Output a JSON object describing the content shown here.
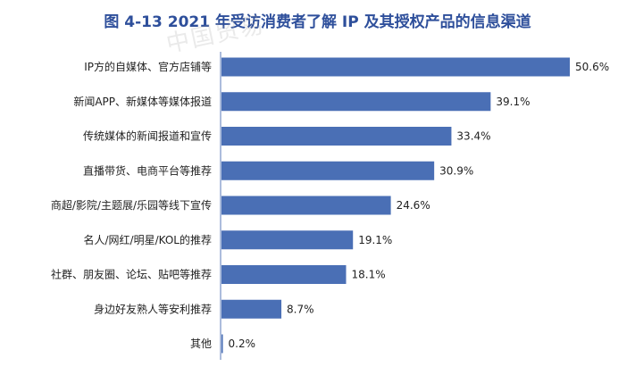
{
  "chart_data": {
    "type": "bar",
    "orientation": "horizontal",
    "title": "图 4-13 2021 年受访消费者了解 IP 及其授权产品的信息渠道",
    "watermark": "中国贸易",
    "bar_color": "#4a6fb5",
    "axis_color": "#5a7ab8",
    "value_suffix": "%",
    "xlim": [
      0,
      50.6
    ],
    "categories": [
      "IP方的自媒体、官方店铺等",
      "新闻APP、新媒体等媒体报道",
      "传统媒体的新闻报道和宣传",
      "直播带货、电商平台等推荐",
      "商超/影院/主题展/乐园等线下宣传",
      "名人/网红/明星/KOL的推荐",
      "社群、朋友圈、论坛、贴吧等推荐",
      "身边好友熟人等安利推荐",
      "其他"
    ],
    "values": [
      50.6,
      39.1,
      33.4,
      30.9,
      24.6,
      19.1,
      18.1,
      8.7,
      0.2
    ],
    "value_labels": [
      "50.6%",
      "39.1%",
      "33.4%",
      "30.9%",
      "24.6%",
      "19.1%",
      "18.1%",
      "8.7%",
      "0.2%"
    ]
  }
}
